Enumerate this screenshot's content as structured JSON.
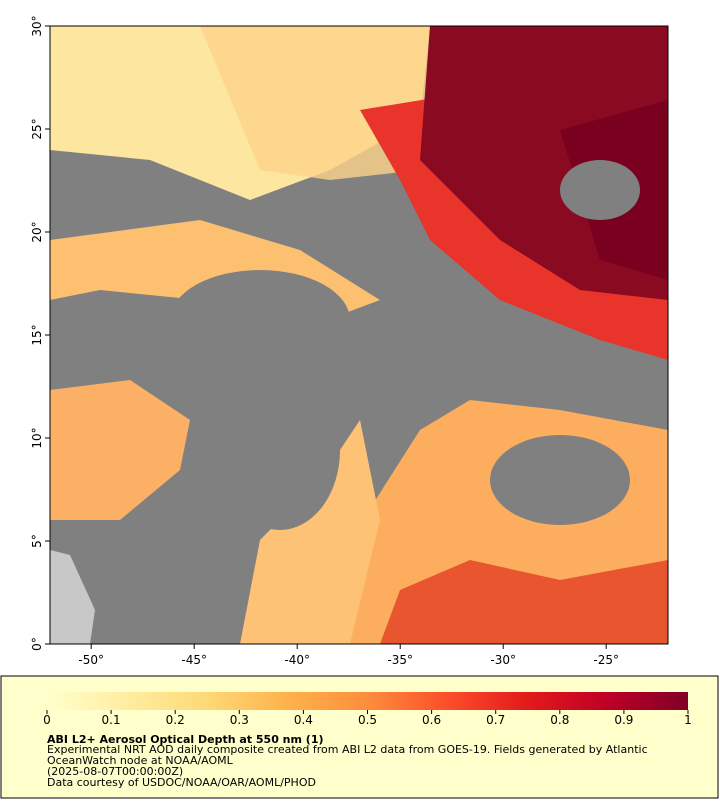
{
  "map": {
    "lonlim": [
      -52,
      -22
    ],
    "latlim": [
      0,
      30
    ],
    "lon_ticks": [
      {
        "value": -50,
        "label": "-50°"
      },
      {
        "value": -45,
        "label": "-45°"
      },
      {
        "value": -40,
        "label": "-40°"
      },
      {
        "value": -35,
        "label": "-35°"
      },
      {
        "value": -30,
        "label": "-30°"
      },
      {
        "value": -25,
        "label": "-25°"
      }
    ],
    "lat_ticks": [
      {
        "value": 0,
        "label": "0°"
      },
      {
        "value": 5,
        "label": "5°"
      },
      {
        "value": 10,
        "label": "10°"
      },
      {
        "value": 15,
        "label": "15°"
      },
      {
        "value": 20,
        "label": "20°"
      },
      {
        "value": 25,
        "label": "25°"
      },
      {
        "value": 30,
        "label": "30°"
      }
    ]
  },
  "colorbar": {
    "limits": [
      0,
      1
    ],
    "ticks": [
      0,
      0.1,
      0.2,
      0.3,
      0.4,
      0.5,
      0.6,
      0.7,
      0.8,
      0.9,
      1
    ],
    "colors": [
      "#ffffcc",
      "#ffeda0",
      "#fed976",
      "#feb24c",
      "#fd8d3c",
      "#fc4e2a",
      "#e31a1c",
      "#bd0026",
      "#800026"
    ]
  },
  "caption": {
    "title": "ABI L2+ Aerosol Optical Depth at 550 nm (1)",
    "lines": [
      "Experimental NRT AOD daily composite created from ABI L2 data from GOES-19. Fields generated by Atlantic",
      "OceanWatch node at NOAA/AOML",
      "(2025-08-07T00:00:00Z)",
      "Data courtesy of USDOC/NOAA/OAR/AOML/PHOD"
    ]
  }
}
